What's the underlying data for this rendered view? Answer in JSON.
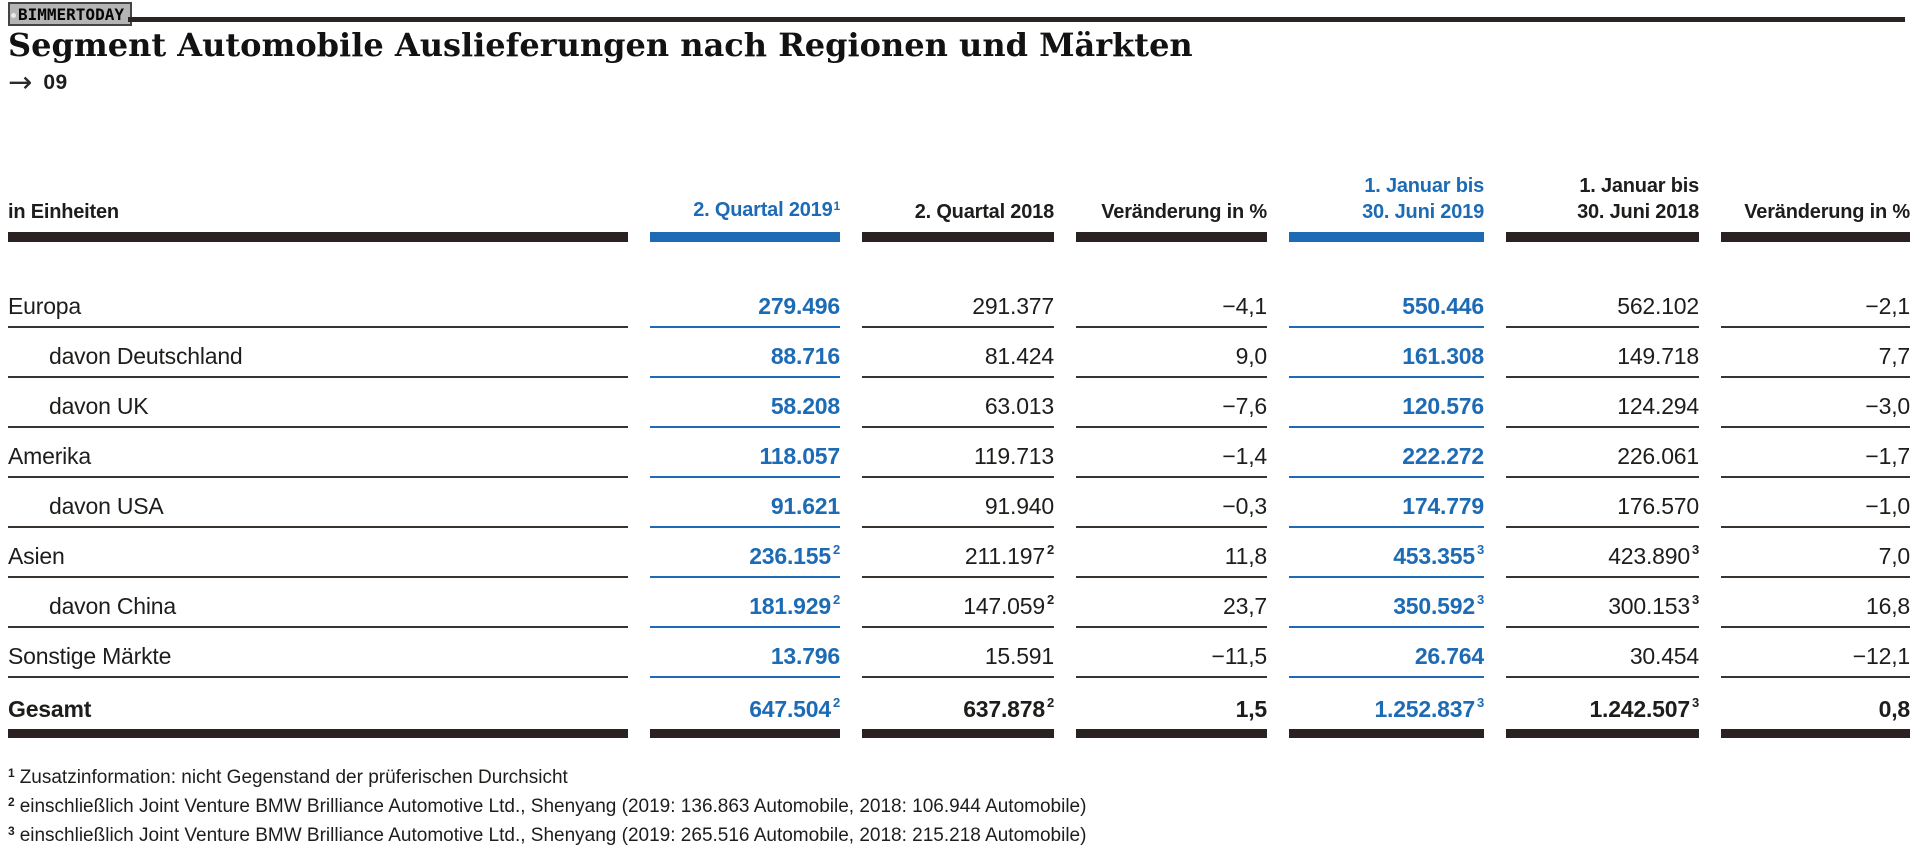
{
  "badge": {
    "label": "BIMMERTODAY"
  },
  "heading": {
    "title": "Segment Automobile Auslieferungen nach Regionen und Märkten",
    "arrow": "→",
    "figure_number": "09"
  },
  "colors": {
    "accent_blue": "#1d6bb5",
    "rule_dark": "#292220",
    "rule_thin": "#3a3431",
    "text": "#1d1d1b"
  },
  "table": {
    "unit_label": "in Einheiten",
    "columns": [
      {
        "line1": "",
        "line2": "2. Quartal 2019",
        "sup": "1",
        "highlight": true
      },
      {
        "line1": "",
        "line2": "2. Quartal 2018",
        "sup": "",
        "highlight": false
      },
      {
        "line1": "",
        "line2": "Veränderung in %",
        "sup": "",
        "highlight": false
      },
      {
        "line1": "1. Januar bis",
        "line2": "30. Juni 2019",
        "sup": "",
        "highlight": true
      },
      {
        "line1": "1. Januar bis",
        "line2": "30. Juni 2018",
        "sup": "",
        "highlight": false
      },
      {
        "line1": "",
        "line2": "Veränderung in %",
        "sup": "",
        "highlight": false
      }
    ],
    "rows": [
      {
        "label": "Europa",
        "indent": false,
        "total": false,
        "values": [
          {
            "v": "279.496",
            "sup": ""
          },
          {
            "v": "291.377",
            "sup": ""
          },
          {
            "v": "−4,1",
            "sup": ""
          },
          {
            "v": "550.446",
            "sup": ""
          },
          {
            "v": "562.102",
            "sup": ""
          },
          {
            "v": "−2,1",
            "sup": ""
          }
        ]
      },
      {
        "label": "davon Deutschland",
        "indent": true,
        "total": false,
        "values": [
          {
            "v": "88.716",
            "sup": ""
          },
          {
            "v": "81.424",
            "sup": ""
          },
          {
            "v": "9,0",
            "sup": ""
          },
          {
            "v": "161.308",
            "sup": ""
          },
          {
            "v": "149.718",
            "sup": ""
          },
          {
            "v": "7,7",
            "sup": ""
          }
        ]
      },
      {
        "label": "davon UK",
        "indent": true,
        "total": false,
        "values": [
          {
            "v": "58.208",
            "sup": ""
          },
          {
            "v": "63.013",
            "sup": ""
          },
          {
            "v": "−7,6",
            "sup": ""
          },
          {
            "v": "120.576",
            "sup": ""
          },
          {
            "v": "124.294",
            "sup": ""
          },
          {
            "v": "−3,0",
            "sup": ""
          }
        ]
      },
      {
        "label": "Amerika",
        "indent": false,
        "total": false,
        "values": [
          {
            "v": "118.057",
            "sup": ""
          },
          {
            "v": "119.713",
            "sup": ""
          },
          {
            "v": "−1,4",
            "sup": ""
          },
          {
            "v": "222.272",
            "sup": ""
          },
          {
            "v": "226.061",
            "sup": ""
          },
          {
            "v": "−1,7",
            "sup": ""
          }
        ]
      },
      {
        "label": "davon USA",
        "indent": true,
        "total": false,
        "values": [
          {
            "v": "91.621",
            "sup": ""
          },
          {
            "v": "91.940",
            "sup": ""
          },
          {
            "v": "−0,3",
            "sup": ""
          },
          {
            "v": "174.779",
            "sup": ""
          },
          {
            "v": "176.570",
            "sup": ""
          },
          {
            "v": "−1,0",
            "sup": ""
          }
        ]
      },
      {
        "label": "Asien",
        "indent": false,
        "total": false,
        "values": [
          {
            "v": "236.155",
            "sup": "2"
          },
          {
            "v": "211.197",
            "sup": "2"
          },
          {
            "v": "11,8",
            "sup": ""
          },
          {
            "v": "453.355",
            "sup": "3"
          },
          {
            "v": "423.890",
            "sup": "3"
          },
          {
            "v": "7,0",
            "sup": ""
          }
        ]
      },
      {
        "label": "davon China",
        "indent": true,
        "total": false,
        "values": [
          {
            "v": "181.929",
            "sup": "2"
          },
          {
            "v": "147.059",
            "sup": "2"
          },
          {
            "v": "23,7",
            "sup": ""
          },
          {
            "v": "350.592",
            "sup": "3"
          },
          {
            "v": "300.153",
            "sup": "3"
          },
          {
            "v": "16,8",
            "sup": ""
          }
        ]
      },
      {
        "label": "Sonstige Märkte",
        "indent": false,
        "total": false,
        "values": [
          {
            "v": "13.796",
            "sup": ""
          },
          {
            "v": "15.591",
            "sup": ""
          },
          {
            "v": "−11,5",
            "sup": ""
          },
          {
            "v": "26.764",
            "sup": ""
          },
          {
            "v": "30.454",
            "sup": ""
          },
          {
            "v": "−12,1",
            "sup": ""
          }
        ]
      },
      {
        "label": "Gesamt",
        "indent": false,
        "total": true,
        "values": [
          {
            "v": "647.504",
            "sup": "2"
          },
          {
            "v": "637.878",
            "sup": "2"
          },
          {
            "v": "1,5",
            "sup": ""
          },
          {
            "v": "1.252.837",
            "sup": "3"
          },
          {
            "v": "1.242.507",
            "sup": "3"
          },
          {
            "v": "0,8",
            "sup": ""
          }
        ]
      }
    ]
  },
  "footnotes": [
    {
      "sup": "1",
      "text": "Zusatzinformation: nicht Gegenstand der prüferischen Durchsicht"
    },
    {
      "sup": "2",
      "text": "einschließlich Joint Venture BMW Brilliance Automotive Ltd., Shenyang (2019: 136.863 Automobile, 2018: 106.944 Automobile)"
    },
    {
      "sup": "3",
      "text": "einschließlich Joint Venture BMW Brilliance Automotive Ltd., Shenyang (2019: 265.516 Automobile, 2018: 215.218 Automobile)"
    }
  ]
}
